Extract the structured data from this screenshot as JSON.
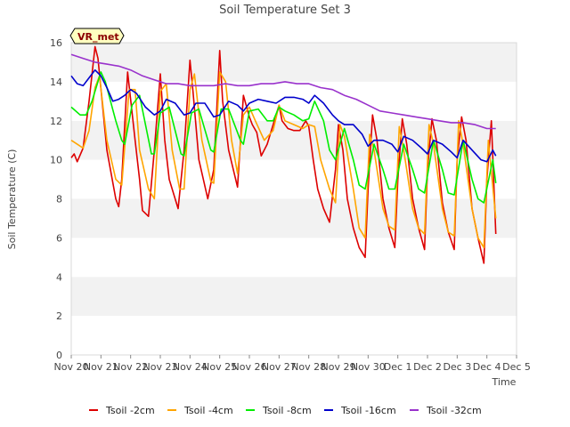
{
  "chart_data": {
    "type": "line",
    "title": "Soil Temperature Set 3",
    "xlabel": "Time",
    "ylabel": "Soil Temperature (C)",
    "ylim": [
      0,
      16
    ],
    "yticks": [
      0,
      2,
      4,
      6,
      8,
      10,
      12,
      14,
      16
    ],
    "xlim": [
      0,
      15
    ],
    "xtick_labels": [
      "Nov 20",
      "Nov 21",
      "Nov 22",
      "Nov 23",
      "Nov 24",
      "Nov 25",
      "Nov 26",
      "Nov 27",
      "Nov 28",
      "Nov 29",
      "Nov 30",
      "Dec 1",
      "Dec 2",
      "Dec 3",
      "Dec 4",
      "Dec 5"
    ],
    "badge": "VR_met",
    "legend_position": "bottom",
    "grid": "horizontal bands",
    "series": [
      {
        "name": "Tsoil -2cm",
        "color": "#dd0000",
        "x": [
          0,
          0.1,
          0.2,
          0.4,
          0.6,
          0.8,
          0.9,
          1.2,
          1.5,
          1.6,
          1.7,
          1.9,
          2.15,
          2.3,
          2.4,
          2.6,
          2.8,
          3.0,
          3.15,
          3.3,
          3.6,
          3.8,
          4.0,
          4.1,
          4.3,
          4.6,
          4.8,
          5.0,
          5.1,
          5.3,
          5.6,
          5.8,
          6.0,
          6.1,
          6.25,
          6.4,
          6.6,
          6.8,
          7.0,
          7.1,
          7.3,
          7.5,
          7.7,
          7.9,
          8.0,
          8.15,
          8.3,
          8.5,
          8.7,
          8.9,
          9.0,
          9.15,
          9.3,
          9.5,
          9.7,
          9.9,
          10.0,
          10.15,
          10.3,
          10.5,
          10.7,
          10.9,
          11.0,
          11.15,
          11.3,
          11.5,
          11.7,
          11.9,
          12.0,
          12.15,
          12.3,
          12.5,
          12.7,
          12.9,
          13.0,
          13.15,
          13.3,
          13.5,
          13.7,
          13.9,
          14.0,
          14.15,
          14.3
        ],
        "y": [
          10.1,
          10.3,
          9.9,
          10.6,
          13.0,
          15.8,
          15.2,
          10.5,
          8.0,
          7.6,
          9.0,
          14.5,
          11.0,
          9.0,
          7.4,
          7.1,
          10.5,
          14.4,
          11.0,
          9.0,
          7.5,
          10.5,
          15.1,
          13.5,
          10.0,
          8.0,
          9.5,
          15.6,
          13.0,
          10.5,
          8.6,
          13.3,
          12.2,
          11.8,
          11.4,
          10.2,
          10.8,
          11.8,
          12.8,
          12.0,
          11.6,
          11.5,
          11.5,
          12.0,
          11.7,
          10.0,
          8.5,
          7.5,
          6.8,
          9.5,
          11.8,
          10.5,
          8.0,
          6.5,
          5.5,
          5.0,
          8.5,
          12.3,
          11.0,
          8.0,
          6.5,
          5.5,
          9.0,
          12.1,
          10.8,
          8.0,
          6.5,
          5.4,
          9.5,
          12.1,
          11.0,
          7.8,
          6.3,
          5.4,
          10.0,
          12.2,
          11.0,
          7.5,
          6.0,
          4.7,
          9.0,
          12.0,
          6.2
        ]
      },
      {
        "name": "Tsoil -4cm",
        "color": "#ffa500",
        "x": [
          0,
          0.2,
          0.4,
          0.6,
          0.8,
          0.95,
          1.2,
          1.5,
          1.7,
          1.95,
          2.15,
          2.3,
          2.6,
          2.8,
          3.0,
          3.2,
          3.4,
          3.65,
          3.8,
          4.0,
          4.15,
          4.4,
          4.7,
          4.8,
          5.0,
          5.2,
          5.4,
          5.6,
          5.8,
          6.0,
          6.2,
          6.5,
          6.8,
          7.0,
          7.2,
          7.5,
          7.8,
          8.0,
          8.2,
          8.4,
          8.7,
          8.9,
          9.05,
          9.2,
          9.5,
          9.7,
          9.9,
          10.05,
          10.2,
          10.5,
          10.7,
          10.9,
          11.05,
          11.2,
          11.5,
          11.7,
          11.9,
          12.05,
          12.2,
          12.5,
          12.7,
          12.9,
          13.05,
          13.2,
          13.5,
          13.7,
          13.9,
          14.05,
          14.3
        ],
        "y": [
          11.0,
          10.8,
          10.6,
          11.5,
          13.7,
          14.3,
          11.0,
          9.0,
          8.7,
          13.6,
          13.6,
          10.5,
          8.5,
          8.0,
          13.5,
          13.9,
          10.5,
          8.5,
          8.5,
          13.6,
          14.4,
          11.0,
          8.9,
          8.8,
          14.5,
          14.0,
          11.0,
          9.3,
          12.3,
          12.7,
          12.0,
          11.0,
          11.5,
          12.8,
          12.0,
          11.8,
          11.6,
          11.8,
          11.7,
          10.0,
          8.5,
          7.8,
          11.8,
          11.2,
          8.5,
          6.5,
          6.0,
          11.3,
          10.5,
          7.5,
          6.6,
          6.4,
          11.7,
          10.5,
          7.5,
          6.5,
          6.2,
          11.8,
          10.8,
          7.5,
          6.3,
          6.1,
          12.0,
          10.8,
          7.5,
          6.0,
          5.5,
          11.0,
          7.0
        ]
      },
      {
        "name": "Tsoil -8cm",
        "color": "#00ee00",
        "x": [
          0,
          0.3,
          0.5,
          0.7,
          1.0,
          1.15,
          1.5,
          1.7,
          1.8,
          2.05,
          2.3,
          2.7,
          2.8,
          3.0,
          3.3,
          3.7,
          3.8,
          4.05,
          4.3,
          4.7,
          4.8,
          5.05,
          5.3,
          5.7,
          5.8,
          6.0,
          6.3,
          6.6,
          6.8,
          7.0,
          7.2,
          7.5,
          7.8,
          8.0,
          8.2,
          8.5,
          8.7,
          8.9,
          9.2,
          9.5,
          9.7,
          9.9,
          10.2,
          10.5,
          10.7,
          10.9,
          11.2,
          11.5,
          11.7,
          11.9,
          12.2,
          12.5,
          12.7,
          12.9,
          13.2,
          13.5,
          13.7,
          13.9,
          14.2,
          14.3
        ],
        "y": [
          12.7,
          12.3,
          12.3,
          13.0,
          14.5,
          14.0,
          12.0,
          11.0,
          10.8,
          12.8,
          13.3,
          10.3,
          10.3,
          12.4,
          12.7,
          10.3,
          10.2,
          12.4,
          12.6,
          10.5,
          10.4,
          12.6,
          12.6,
          11.0,
          10.8,
          12.5,
          12.6,
          12.0,
          12.0,
          12.7,
          12.5,
          12.3,
          12.0,
          12.1,
          13.0,
          12.0,
          10.5,
          10.0,
          11.6,
          10.0,
          8.7,
          8.5,
          10.8,
          9.5,
          8.5,
          8.5,
          10.8,
          9.5,
          8.5,
          8.3,
          11.0,
          9.5,
          8.3,
          8.2,
          11.0,
          9.0,
          8.0,
          7.8,
          10.0,
          8.8
        ]
      },
      {
        "name": "Tsoil -16cm",
        "color": "#0000cc",
        "x": [
          0,
          0.2,
          0.4,
          0.6,
          0.8,
          1.0,
          1.2,
          1.4,
          1.6,
          1.8,
          2.0,
          2.2,
          2.5,
          2.8,
          3.0,
          3.2,
          3.5,
          3.8,
          4.0,
          4.2,
          4.5,
          4.8,
          5.0,
          5.3,
          5.6,
          5.8,
          6.0,
          6.3,
          6.6,
          6.9,
          7.2,
          7.5,
          7.8,
          8.0,
          8.2,
          8.5,
          8.8,
          9.0,
          9.2,
          9.5,
          9.8,
          10.0,
          10.2,
          10.5,
          10.8,
          11.0,
          11.2,
          11.5,
          11.8,
          12.0,
          12.2,
          12.5,
          12.8,
          13.0,
          13.2,
          13.5,
          13.8,
          14.0,
          14.2,
          14.3
        ],
        "y": [
          14.3,
          13.9,
          13.8,
          14.2,
          14.6,
          14.3,
          13.7,
          13.0,
          13.1,
          13.3,
          13.6,
          13.4,
          12.7,
          12.3,
          12.5,
          13.1,
          12.9,
          12.3,
          12.4,
          12.9,
          12.9,
          12.2,
          12.3,
          13.0,
          12.8,
          12.5,
          12.9,
          13.1,
          13.0,
          12.9,
          13.2,
          13.2,
          13.1,
          12.9,
          13.3,
          12.9,
          12.3,
          12.0,
          11.8,
          11.8,
          11.3,
          10.7,
          11.0,
          11.0,
          10.8,
          10.4,
          11.2,
          11.0,
          10.6,
          10.3,
          11.0,
          10.8,
          10.4,
          10.1,
          11.0,
          10.5,
          10.0,
          9.9,
          10.5,
          10.2
        ]
      },
      {
        "name": "Tsoil -32cm",
        "color": "#9932cc",
        "x": [
          0,
          0.4,
          0.8,
          1.2,
          1.6,
          2.0,
          2.4,
          2.8,
          3.2,
          3.6,
          4.0,
          4.4,
          4.8,
          5.2,
          5.6,
          6.0,
          6.4,
          6.8,
          7.2,
          7.6,
          8.0,
          8.4,
          8.8,
          9.2,
          9.6,
          10.0,
          10.4,
          10.8,
          11.2,
          11.6,
          12.0,
          12.4,
          12.8,
          13.2,
          13.6,
          14.0,
          14.3
        ],
        "y": [
          15.4,
          15.2,
          15.0,
          14.9,
          14.8,
          14.6,
          14.3,
          14.1,
          13.9,
          13.9,
          13.8,
          13.8,
          13.8,
          13.9,
          13.8,
          13.8,
          13.9,
          13.9,
          14.0,
          13.9,
          13.9,
          13.7,
          13.6,
          13.3,
          13.1,
          12.8,
          12.5,
          12.4,
          12.3,
          12.2,
          12.1,
          12.0,
          11.9,
          11.9,
          11.8,
          11.6,
          11.6
        ]
      }
    ]
  }
}
